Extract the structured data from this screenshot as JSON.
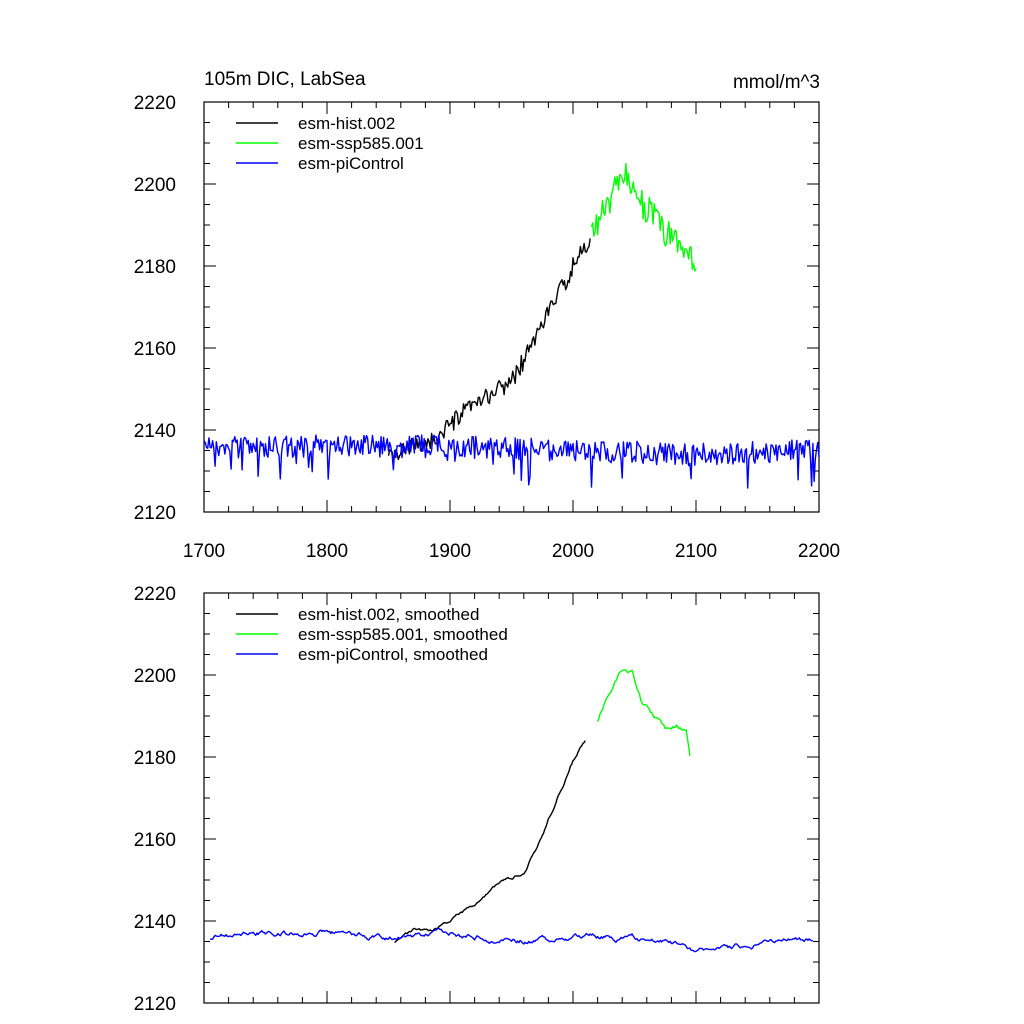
{
  "figure": {
    "title": "105m DIC, LabSea",
    "units": "mmol/m^3"
  },
  "chart_data": [
    {
      "type": "line",
      "title": "105m DIC, LabSea",
      "units": "mmol/m^3",
      "xlim": [
        1700,
        2200
      ],
      "ylim": [
        2120,
        2220
      ],
      "x_ticks": [
        1700,
        1800,
        1900,
        2000,
        2100,
        2200
      ],
      "x_tick_labels": [
        "1700",
        "1800",
        "1900",
        "2000",
        "2100",
        "2200"
      ],
      "y_ticks": [
        2120,
        2140,
        2160,
        2180,
        2200,
        2220
      ],
      "y_tick_labels": [
        "2120",
        "2140",
        "2160",
        "2180",
        "2200",
        "2220"
      ],
      "grid": false,
      "legend": "top-left",
      "series": [
        {
          "name": "esm-hist.002",
          "color": "#000000",
          "kind": "hist",
          "x_range": [
            1850,
            2014
          ],
          "anchors": [
            [
              1850,
              2133
            ],
            [
              1870,
              2136
            ],
            [
              1890,
              2138
            ],
            [
              1910,
              2144
            ],
            [
              1930,
              2148
            ],
            [
              1950,
              2152
            ],
            [
              1960,
              2157
            ],
            [
              1970,
              2163
            ],
            [
              1980,
              2169
            ],
            [
              1990,
              2174
            ],
            [
              2000,
              2180
            ],
            [
              2014,
              2186
            ]
          ],
          "noise": 2.2
        },
        {
          "name": "esm-ssp585.001",
          "color": "#00ff00",
          "kind": "ssp",
          "x_range": [
            2015,
            2100
          ],
          "anchors": [
            [
              2015,
              2188
            ],
            [
              2030,
              2196
            ],
            [
              2040,
              2201
            ],
            [
              2045,
              2202
            ],
            [
              2055,
              2196
            ],
            [
              2065,
              2192
            ],
            [
              2075,
              2188
            ],
            [
              2085,
              2186
            ],
            [
              2095,
              2183
            ],
            [
              2100,
              2178
            ]
          ],
          "noise": 3.8
        },
        {
          "name": "esm-piControl",
          "color": "#0000ff",
          "kind": "pi",
          "x_range": [
            1700,
            2200
          ],
          "anchors": [
            [
              1700,
              2136
            ],
            [
              1800,
              2136
            ],
            [
              1900,
              2136
            ],
            [
              2000,
              2135
            ],
            [
              2100,
              2134
            ],
            [
              2200,
              2135
            ]
          ],
          "noise": 2.8
        }
      ]
    },
    {
      "type": "line",
      "xlim": [
        1700,
        2200
      ],
      "ylim": [
        2120,
        2220
      ],
      "x_ticks": [
        1700,
        1800,
        1900,
        2000,
        2100,
        2200
      ],
      "y_ticks": [
        2120,
        2140,
        2160,
        2180,
        2200,
        2220
      ],
      "y_tick_labels": [
        "2120",
        "2140",
        "2160",
        "2180",
        "2200",
        "2220"
      ],
      "grid": false,
      "legend": "top-left",
      "series": [
        {
          "name": "esm-hist.002, smoothed",
          "color": "#000000",
          "kind": "hist",
          "x_range": [
            1855,
            2010
          ],
          "anchors": [
            [
              1855,
              2135
            ],
            [
              1870,
              2137.5
            ],
            [
              1890,
              2138
            ],
            [
              1900,
              2140
            ],
            [
              1920,
              2144
            ],
            [
              1940,
              2149
            ],
            [
              1960,
              2152
            ],
            [
              1970,
              2158
            ],
            [
              1980,
              2165
            ],
            [
              1990,
              2172
            ],
            [
              2000,
              2179
            ],
            [
              2010,
              2184.5
            ]
          ],
          "noise": 0.6
        },
        {
          "name": "esm-ssp585.001, smoothed",
          "color": "#00ff00",
          "kind": "ssp",
          "x_range": [
            2020,
            2095
          ],
          "anchors": [
            [
              2020,
              2189
            ],
            [
              2030,
              2196
            ],
            [
              2038,
              2200.5
            ],
            [
              2048,
              2200.8
            ],
            [
              2055,
              2194
            ],
            [
              2065,
              2190
            ],
            [
              2075,
              2187
            ],
            [
              2085,
              2188
            ],
            [
              2092,
              2186
            ],
            [
              2095,
              2180
            ]
          ],
          "noise": 0.9
        },
        {
          "name": "esm-piControl, smoothed",
          "color": "#0000ff",
          "kind": "pi",
          "x_range": [
            1705,
            2195
          ],
          "anchors": [
            [
              1705,
              2136
            ],
            [
              1740,
              2137
            ],
            [
              1800,
              2137
            ],
            [
              1850,
              2136
            ],
            [
              1900,
              2137
            ],
            [
              1950,
              2135
            ],
            [
              2000,
              2136
            ],
            [
              2050,
              2136
            ],
            [
              2100,
              2133
            ],
            [
              2150,
              2134
            ],
            [
              2195,
              2136
            ]
          ],
          "noise": 0.9
        }
      ]
    }
  ]
}
